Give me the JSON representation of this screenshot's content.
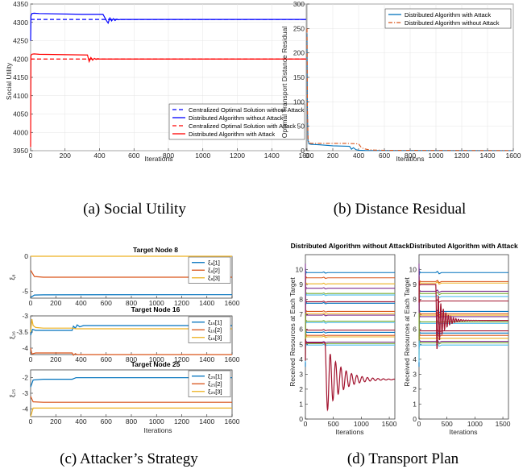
{
  "chart_data": [
    {
      "id": "a",
      "type": "line",
      "xlabel": "Iterations",
      "ylabel": "Social Utility",
      "xlim": [
        0,
        1600
      ],
      "ylim": [
        3950,
        4350
      ],
      "xticks": [
        0,
        200,
        400,
        600,
        800,
        1000,
        1200,
        1400,
        1600
      ],
      "yticks": [
        3950,
        4000,
        4050,
        4100,
        4150,
        4200,
        4250,
        4300,
        4350
      ],
      "legend": "bottom-right",
      "series": [
        {
          "name": "Centralized Optimal Solution without Attack",
          "color": "#0000ff",
          "style": "dashed",
          "x": [
            0,
            1600
          ],
          "y": [
            4308,
            4308
          ]
        },
        {
          "name": "Distributed Algorithm without Attack",
          "color": "#0000ff",
          "style": "solid",
          "x": [
            0,
            2,
            8,
            20,
            50,
            300,
            420,
            440,
            450,
            460,
            470,
            480,
            490,
            500,
            510,
            520,
            540,
            600,
            1600
          ],
          "y": [
            4250,
            4318,
            4324,
            4325,
            4324,
            4322,
            4322,
            4305,
            4298,
            4312,
            4304,
            4310,
            4305,
            4309,
            4307,
            4308,
            4308,
            4308,
            4308
          ]
        },
        {
          "name": "Centralized Optimal Solution with Attack",
          "color": "#ff0000",
          "style": "dashed",
          "x": [
            0,
            1600
          ],
          "y": [
            4200,
            4200
          ]
        },
        {
          "name": "Distributed Algorithm with Attack",
          "color": "#ff0000",
          "style": "solid",
          "x": [
            0,
            2,
            8,
            20,
            50,
            330,
            340,
            350,
            360,
            370,
            380,
            390,
            400,
            420,
            460,
            1600
          ],
          "y": [
            3960,
            4210,
            4213,
            4214,
            4213,
            4211,
            4193,
            4204,
            4197,
            4202,
            4199,
            4201,
            4200,
            4200,
            4200,
            4200
          ]
        }
      ],
      "caption": "(a)  Social Utility"
    },
    {
      "id": "b",
      "type": "line",
      "xlabel": "Iterations",
      "ylabel": "Optimal Transport Distance Residual",
      "xlim": [
        0,
        1600
      ],
      "ylim": [
        0,
        300
      ],
      "xticks": [
        0,
        200,
        400,
        600,
        800,
        1000,
        1200,
        1400,
        1600
      ],
      "yticks": [
        0,
        50,
        100,
        150,
        200,
        250,
        300
      ],
      "legend": "top-right",
      "series": [
        {
          "name": "Distributed Algorithm with Attack",
          "color": "#0072bd",
          "style": "solid",
          "x": [
            0,
            3,
            8,
            15,
            30,
            100,
            200,
            330,
            345,
            360,
            380,
            400,
            450,
            1600
          ],
          "y": [
            240,
            80,
            20,
            14,
            13,
            12,
            10,
            9,
            3,
            6,
            2,
            1,
            0.5,
            0.2
          ]
        },
        {
          "name": "Distributed Algorithm without Attack",
          "color": "#d95319",
          "style": "dashdot",
          "x": [
            0,
            3,
            8,
            15,
            30,
            100,
            200,
            300,
            400,
            420,
            440,
            460,
            480,
            500,
            600,
            1600
          ],
          "y": [
            250,
            90,
            25,
            16,
            15,
            15,
            15,
            15,
            14,
            7,
            4,
            3,
            2,
            1.5,
            0.8,
            0.2
          ]
        }
      ],
      "caption": "(b)  Distance Residual"
    },
    {
      "id": "c",
      "type": "line",
      "xlabel": "Iterations",
      "xlim": [
        0,
        1600
      ],
      "xticks": [
        0,
        200,
        400,
        600,
        800,
        1000,
        1200,
        1400,
        1600
      ],
      "subplots": [
        {
          "title": "Target Node 8",
          "ylabel": "ξ₈",
          "ylim": [
            -6,
            0
          ],
          "yticks": [
            -5,
            0
          ],
          "series": [
            {
              "name": "ξ₈[1]",
              "color": "#0072bd",
              "x": [
                0,
                30,
                100,
                1600
              ],
              "y": [
                -5.9,
                -5.55,
                -5.52,
                -5.5
              ]
            },
            {
              "name": "ξ₈[2]",
              "color": "#d95319",
              "x": [
                0,
                30,
                100,
                1600
              ],
              "y": [
                -2.0,
                -2.9,
                -3.0,
                -3.0
              ]
            },
            {
              "name": "ξ₈[3]",
              "color": "#edb120",
              "x": [
                0,
                1600
              ],
              "y": [
                0.0,
                0.0
              ]
            }
          ]
        },
        {
          "title": "Target Node 16",
          "ylabel": "ξ₁₆",
          "ylim": [
            -4.2,
            -3
          ],
          "yticks": [
            -4,
            -3.5,
            -3
          ],
          "series": [
            {
              "name": "ξ₁₆[1]",
              "color": "#0072bd",
              "x": [
                0,
                15,
                40,
                100,
                330,
                340,
                355,
                370,
                390,
                420,
                1600
              ],
              "y": [
                -3.6,
                -3.42,
                -3.45,
                -3.45,
                -3.45,
                -3.32,
                -3.38,
                -3.28,
                -3.34,
                -3.3,
                -3.3
              ]
            },
            {
              "name": "ξ₁₆[2]",
              "color": "#d95319",
              "x": [
                0,
                10,
                40,
                100,
                330,
                340,
                355,
                370,
                400,
                1600
              ],
              "y": [
                -4.0,
                -4.18,
                -4.15,
                -4.15,
                -4.15,
                -4.22,
                -4.17,
                -4.2,
                -4.2,
                -4.2
              ]
            },
            {
              "name": "ξ₁₆[3]",
              "color": "#edb120",
              "x": [
                0,
                10,
                20,
                40,
                100,
                330,
                360,
                400,
                1600
              ],
              "y": [
                -3.5,
                -3.1,
                -3.3,
                -3.36,
                -3.38,
                -3.38,
                -3.4,
                -3.4,
                -3.4
              ]
            }
          ]
        },
        {
          "title": "Target Node 25",
          "ylabel": "ξ₂₅",
          "ylim": [
            -4.5,
            -1.5
          ],
          "yticks": [
            -4,
            -3,
            -2
          ],
          "series": [
            {
              "name": "ξ₂₅[1]",
              "color": "#0072bd",
              "x": [
                0,
                20,
                100,
                330,
                360,
                1600
              ],
              "y": [
                -2.6,
                -2.15,
                -2.1,
                -2.1,
                -2.0,
                -2.0
              ]
            },
            {
              "name": "ξ₂₅[2]",
              "color": "#d95319",
              "x": [
                0,
                20,
                100,
                1600
              ],
              "y": [
                -3.2,
                -3.55,
                -3.58,
                -3.58
              ]
            },
            {
              "name": "ξ₂₅[3]",
              "color": "#edb120",
              "x": [
                0,
                20,
                100,
                1600
              ],
              "y": [
                -4.5,
                -3.95,
                -3.95,
                -3.95
              ]
            }
          ]
        }
      ],
      "caption": "(c)  Attacker’s Strategy"
    },
    {
      "id": "d",
      "type": "line",
      "xlabel": "Iterations",
      "ylabel": "Received Resources at Each Target",
      "ylim": [
        0,
        11
      ],
      "subplots": [
        {
          "title": "Distributed Algorithm without Attack",
          "xlim": [
            0,
            1600
          ],
          "xticks": [
            0,
            500,
            1000,
            1500
          ],
          "yticks": [
            0,
            1,
            2,
            3,
            4,
            5,
            6,
            7,
            8,
            9,
            10
          ],
          "levels": [
            9.8,
            9.45,
            9.05,
            8.75,
            8.4,
            8.3,
            7.85,
            7.75,
            7.2,
            7.05,
            6.95,
            6.55,
            6.45,
            5.95,
            5.8,
            5.6,
            5.5,
            5.15,
            5.05,
            4.95
          ],
          "oscillating_series": {
            "start": 5.1,
            "final": 2.65,
            "onset": 350
          }
        },
        {
          "title": "Distributed Algorithm with Attack",
          "xlim": [
            0,
            1600
          ],
          "xticks": [
            0,
            500,
            1000,
            1500
          ],
          "yticks": [
            0,
            1,
            2,
            3,
            4,
            5,
            6,
            7,
            8,
            9,
            10
          ],
          "levels": [
            9.8,
            9.2,
            9.1,
            8.55,
            8.4,
            8.2,
            7.9,
            7.2,
            7.05,
            6.95,
            6.85,
            6.5,
            6.4,
            5.9,
            5.75,
            5.6,
            5.4,
            5.2,
            5.1,
            4.95
          ],
          "oscillating_series": {
            "start": 9.0,
            "final": 6.6,
            "onset": 300
          }
        }
      ],
      "caption": "(d)  Transport Plan"
    }
  ]
}
